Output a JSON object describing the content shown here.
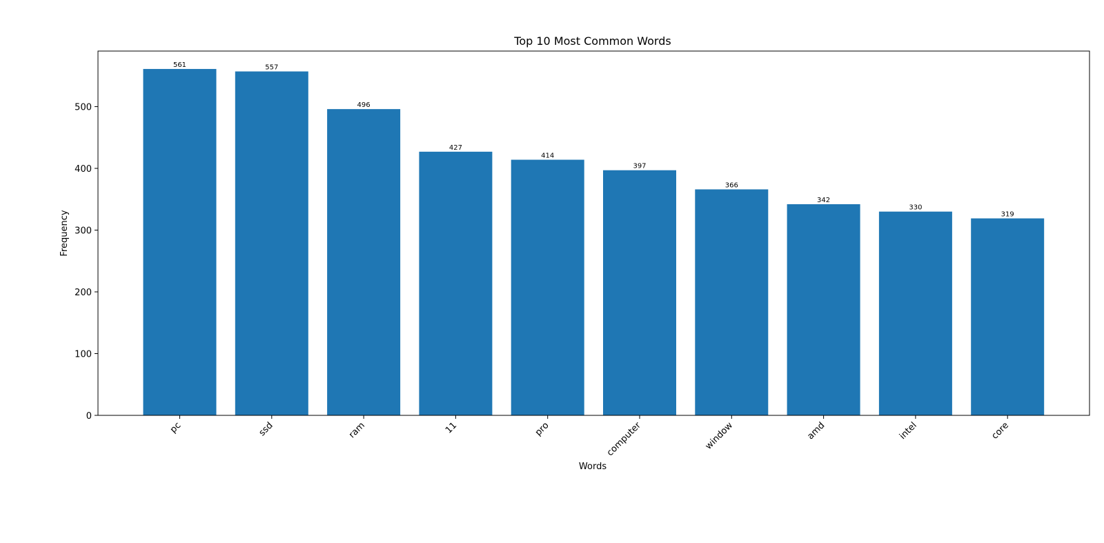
{
  "chart_data": {
    "type": "bar",
    "title": "Top 10 Most Common Words",
    "xlabel": "Words",
    "ylabel": "Frequency",
    "categories": [
      "pc",
      "ssd",
      "ram",
      "11",
      "pro",
      "computer",
      "window",
      "amd",
      "intel",
      "core"
    ],
    "values": [
      561,
      557,
      496,
      427,
      414,
      397,
      366,
      342,
      330,
      319
    ],
    "ylim": [
      0,
      590
    ],
    "yticks": [
      0,
      100,
      200,
      300,
      400,
      500
    ],
    "bar_color": "#1f77b4",
    "grid": false,
    "show_data_labels": true,
    "xtick_rotation": 45
  }
}
